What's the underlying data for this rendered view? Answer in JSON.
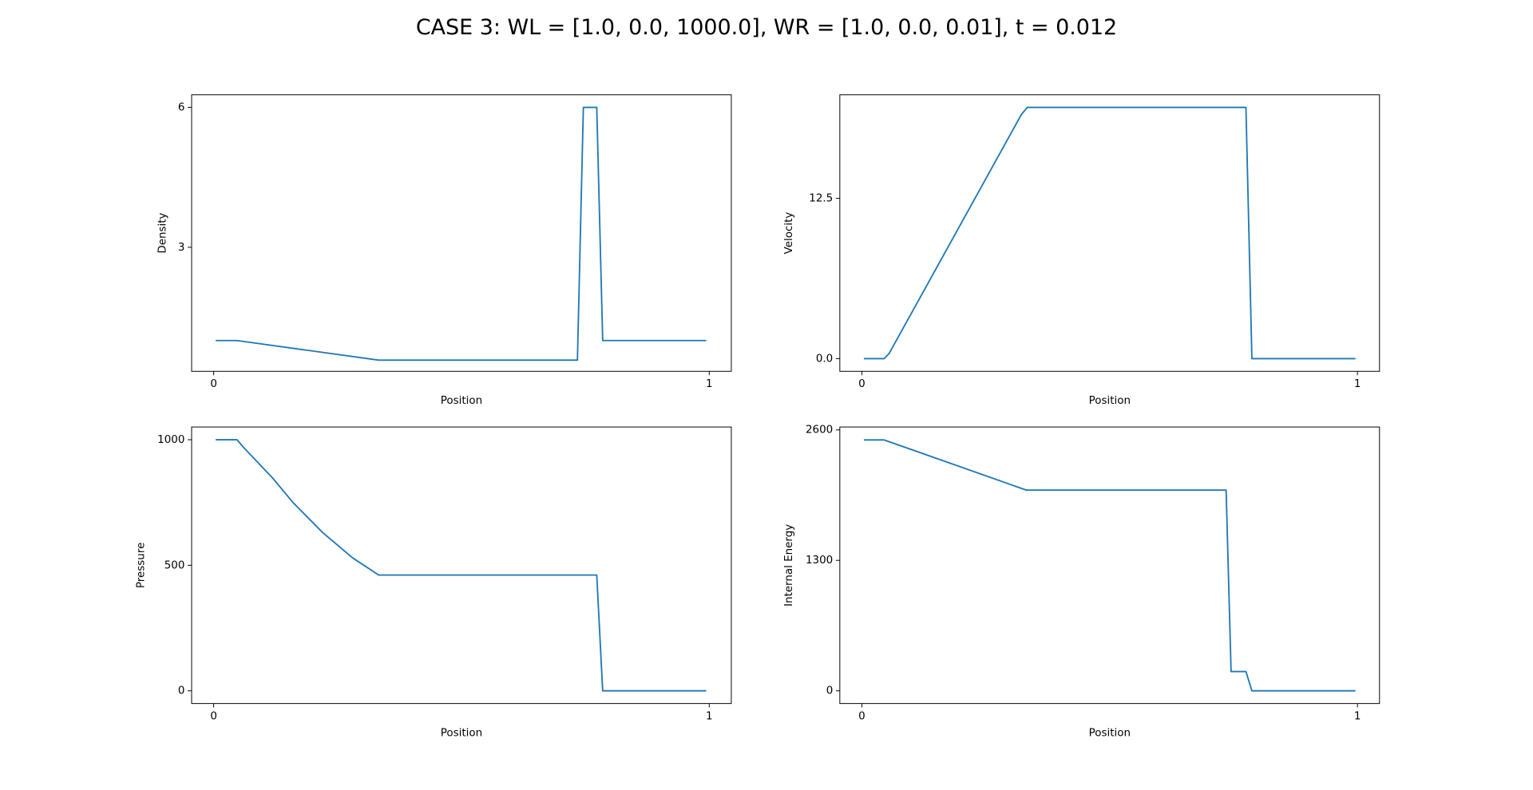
{
  "title": "CASE 3: WL = [1.0, 0.0, 1000.0], WR = [1.0, 0.0, 0.01], t = 0.012",
  "chart_data": [
    {
      "type": "line",
      "xlabel": "Position",
      "ylabel": "Density",
      "color": "#1f77b4",
      "x": [
        0.004,
        0.047,
        0.333,
        0.734,
        0.746,
        0.773,
        0.785,
        0.994
      ],
      "values": [
        1.0,
        1.0,
        0.58,
        0.58,
        6.0,
        6.0,
        1.0,
        1.0
      ],
      "xlim": [
        -0.0445,
        1.0445
      ],
      "xticks": [
        0,
        1
      ],
      "ylim": [
        0.34,
        6.27
      ],
      "yticks": [
        3,
        6
      ]
    },
    {
      "type": "line",
      "xlabel": "Position",
      "ylabel": "Velocity",
      "color": "#1f77b4",
      "x": [
        0.004,
        0.045,
        0.055,
        0.322,
        0.334,
        0.775,
        0.787,
        0.996
      ],
      "values": [
        0,
        0,
        0.4,
        19.05,
        19.6,
        19.6,
        0,
        0
      ],
      "xlim": [
        -0.0445,
        1.0445
      ],
      "xticks": [
        0,
        1
      ],
      "ylim": [
        -0.99,
        20.58
      ],
      "yticks": [
        {
          "value": 0,
          "label": "0.0"
        },
        {
          "value": 12.5,
          "label": "12.5"
        }
      ]
    },
    {
      "type": "line",
      "xlabel": "Position",
      "ylabel": "Pressure",
      "color": "#1f77b4",
      "x": [
        0.004,
        0.047,
        0.06,
        0.12,
        0.16,
        0.22,
        0.28,
        0.333,
        0.773,
        0.785,
        0.994
      ],
      "values": [
        1000,
        1000,
        970,
        845,
        750,
        630,
        530,
        461,
        461,
        0.01,
        0.01
      ],
      "xlim": [
        -0.0445,
        1.0445
      ],
      "xticks": [
        0,
        1
      ],
      "ylim": [
        -50.6,
        1050.6
      ],
      "yticks": [
        0,
        500,
        1000
      ]
    },
    {
      "type": "line",
      "xlabel": "Position",
      "ylabel": "Internal Energy",
      "color": "#1f77b4",
      "x": [
        0.004,
        0.045,
        0.332,
        0.735,
        0.745,
        0.775,
        0.787,
        0.996
      ],
      "values": [
        2500,
        2500,
        2000,
        2000,
        192,
        192,
        0.025,
        0.025
      ],
      "xlim": [
        -0.0445,
        1.0445
      ],
      "xticks": [
        0,
        1
      ],
      "ylim": [
        -126.6,
        2629
      ],
      "yticks": [
        0,
        1300,
        2600
      ]
    }
  ]
}
